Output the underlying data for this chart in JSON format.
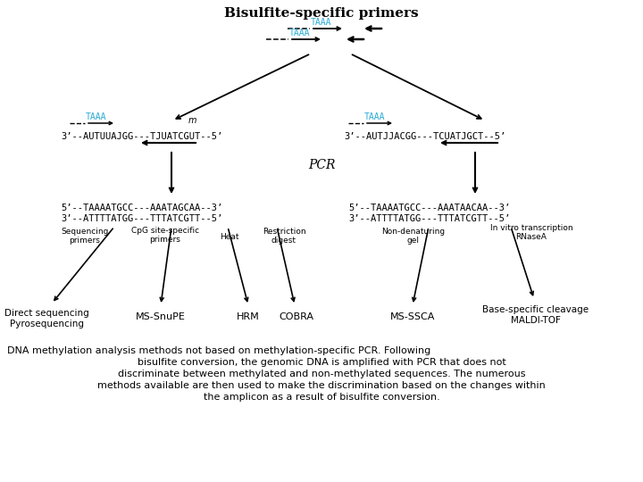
{
  "bg_color": "#ffffff",
  "black": "#000000",
  "cyan": "#29ABD4",
  "title": "Bisulfite-specific primers",
  "pcr_label": "PCR",
  "caption_lines": [
    "DNA methylation analysis methods not based on methylation-specific PCR. Following",
    "bisulfite conversion, the genomic DNA is amplified with PCR that does not",
    "discriminate between methylated and non-methylated sequences. The numerous",
    "methods available are then used to make the discrimination based on the changes within",
    "the amplicon as a result of bisulfite conversion."
  ],
  "left_seq_line": "3’--AUTUUAJGG---TJUATCGUT--5’",
  "right_seq_line": "3’--AUTJJACGG---TCUATJGCT--5’",
  "left_prod_line1": "5’--TAAAATGCC---AAATAGCAA--3’",
  "left_prod_line2": "3’--ATTTTATGG---TTTATCGTT--5’",
  "right_prod_line1": "5’--TAAAATGCC---AAATAACAA--3’",
  "right_prod_line2": "3’--ATTTTATGG---TTTATCGTT--5’",
  "branch_labels_top": [
    "Sequencing\nprimers",
    "CpG site-specific\nprimers",
    "Heat",
    "Restriction\ndigest",
    "Non-denaturing\ngel",
    "In vitro transcription\nRNaseA"
  ],
  "branch_labels_bot": [
    "Direct sequencing\nPyrosequencing",
    "MS-SnuPE",
    "HRM",
    "COBRA",
    "MS-SSCA",
    "Base-specific cleavage\nMALDI-TOF"
  ]
}
